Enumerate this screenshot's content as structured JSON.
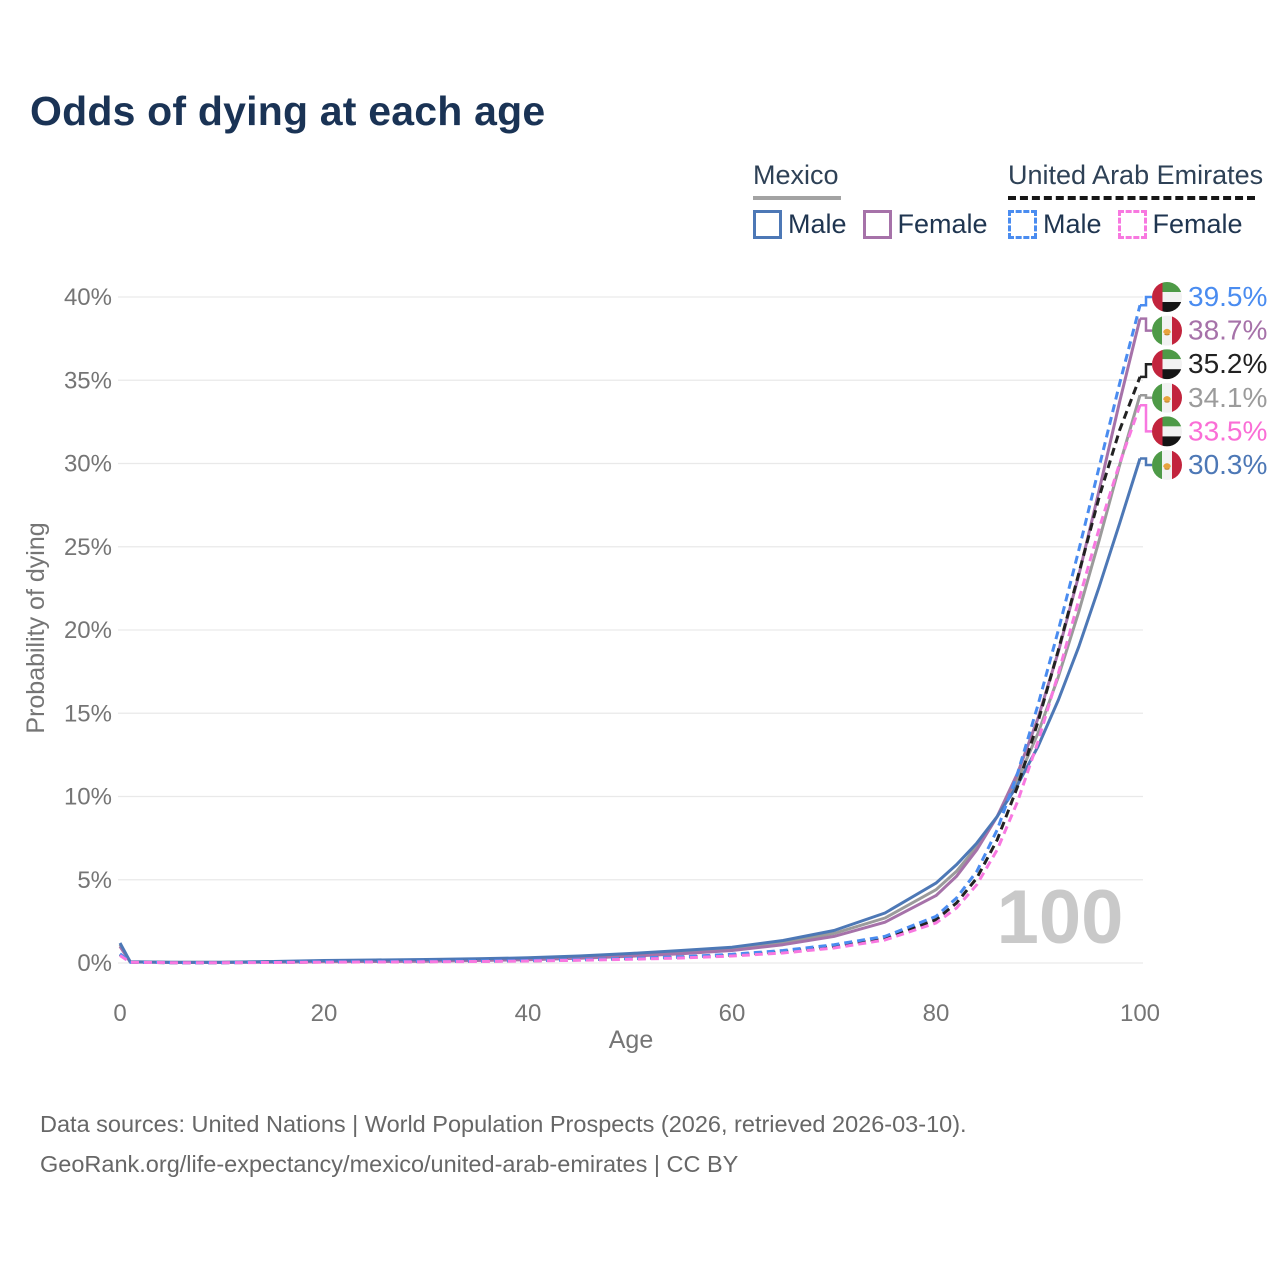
{
  "title": "Odds of dying at each age",
  "legend": {
    "groups": [
      {
        "country": "Mexico",
        "line_style": "solid",
        "underline_color": "#a3a3a3",
        "items": [
          {
            "label": "Male",
            "color": "#4d78b6",
            "dashed": false
          },
          {
            "label": "Female",
            "color": "#a672a9",
            "dashed": false
          }
        ]
      },
      {
        "country": "United Arab Emirates",
        "line_style": "dashed",
        "underline_color": "#161616",
        "items": [
          {
            "label": "Male",
            "color": "#4a8cf0",
            "dashed": true
          },
          {
            "label": "Female",
            "color": "#f878e0",
            "dashed": true
          }
        ]
      }
    ]
  },
  "axes": {
    "x": {
      "label": "Age",
      "ticks": [
        0,
        20,
        40,
        60,
        80,
        100
      ],
      "range": [
        0,
        100
      ]
    },
    "y": {
      "label": "Probability of dying",
      "ticks": [
        "0%",
        "5%",
        "10%",
        "15%",
        "20%",
        "25%",
        "30%",
        "35%",
        "40%"
      ],
      "range_pct": [
        0,
        40
      ],
      "grid": true
    }
  },
  "watermark": "100",
  "footer": {
    "line1": "Data sources: United Nations | World Population Prospects (2026, retrieved 2026-03-10).",
    "line2": "GeoRank.org/life-expectancy/mexico/united-arab-emirates | CC BY"
  },
  "chart_data": {
    "type": "line",
    "title": "Odds of dying at each age",
    "xlabel": "Age",
    "ylabel": "Probability of dying",
    "xlim": [
      0,
      100
    ],
    "ylim_pct": [
      0,
      40
    ],
    "grid": "horizontal",
    "legend_position": "top-right",
    "x": [
      0,
      1,
      5,
      10,
      15,
      20,
      25,
      30,
      35,
      40,
      45,
      50,
      55,
      60,
      65,
      70,
      75,
      80,
      82,
      84,
      86,
      88,
      90,
      92,
      94,
      96,
      98,
      100
    ],
    "series": [
      {
        "id": "mexico-both",
        "name": "Mexico Both sexes",
        "country": "MX",
        "dashed": false,
        "color": "#9b9b9b",
        "label_color": "#9b9b9b",
        "end_label": "34.1%",
        "values": [
          1.1,
          0.07,
          0.035,
          0.035,
          0.07,
          0.11,
          0.14,
          0.16,
          0.2,
          0.26,
          0.35,
          0.49,
          0.65,
          0.85,
          1.22,
          1.78,
          2.7,
          4.4,
          5.5,
          7.0,
          8.8,
          11.0,
          13.8,
          17.2,
          21.1,
          25.4,
          29.9,
          34.1
        ]
      },
      {
        "id": "mexico-female",
        "name": "Mexico Female",
        "country": "MX",
        "dashed": false,
        "color": "#a672a9",
        "label_color": "#a672a9",
        "end_label": "38.7%",
        "values": [
          1.0,
          0.06,
          0.03,
          0.03,
          0.05,
          0.07,
          0.09,
          0.11,
          0.15,
          0.2,
          0.28,
          0.4,
          0.55,
          0.75,
          1.1,
          1.6,
          2.45,
          4.05,
          5.2,
          6.8,
          8.8,
          11.4,
          14.7,
          18.7,
          23.3,
          28.4,
          33.7,
          38.7
        ]
      },
      {
        "id": "mexico-male",
        "name": "Mexico Male",
        "country": "MX",
        "dashed": false,
        "color": "#4d78b6",
        "label_color": "#4d78b6",
        "end_label": "30.3%",
        "values": [
          1.2,
          0.08,
          0.04,
          0.04,
          0.09,
          0.15,
          0.18,
          0.21,
          0.25,
          0.31,
          0.42,
          0.57,
          0.75,
          0.95,
          1.35,
          1.95,
          3.0,
          4.8,
          5.9,
          7.2,
          8.8,
          10.7,
          13.0,
          15.8,
          19.0,
          22.6,
          26.4,
          30.3
        ]
      },
      {
        "id": "uae-both",
        "name": "United Arab Emirates Both sexes",
        "country": "AE",
        "dashed": true,
        "color": "#222222",
        "label_color": "#222222",
        "end_label": "35.2%",
        "values": [
          0.5,
          0.045,
          0.019,
          0.019,
          0.035,
          0.06,
          0.075,
          0.085,
          0.105,
          0.135,
          0.18,
          0.25,
          0.34,
          0.47,
          0.68,
          1.0,
          1.5,
          2.6,
          3.6,
          5.1,
          7.4,
          10.6,
          14.5,
          18.8,
          23.4,
          28.0,
          32.0,
          35.2
        ]
      },
      {
        "id": "uae-male",
        "name": "United Arab Emirates Male",
        "country": "AE",
        "dashed": true,
        "color": "#4a8cf0",
        "label_color": "#4a8cf0",
        "end_label": "39.5%",
        "values": [
          0.55,
          0.05,
          0.02,
          0.02,
          0.04,
          0.07,
          0.09,
          0.1,
          0.12,
          0.15,
          0.2,
          0.28,
          0.38,
          0.52,
          0.75,
          1.1,
          1.6,
          2.8,
          3.9,
          5.5,
          8.0,
          11.4,
          15.5,
          20.0,
          24.8,
          29.8,
          34.8,
          39.5
        ]
      },
      {
        "id": "uae-female",
        "name": "United Arab Emirates Female",
        "country": "AE",
        "dashed": true,
        "color": "#f878e0",
        "label_color": "#fa6ed6",
        "end_label": "33.5%",
        "values": [
          0.45,
          0.04,
          0.018,
          0.018,
          0.03,
          0.05,
          0.06,
          0.07,
          0.09,
          0.12,
          0.16,
          0.22,
          0.3,
          0.42,
          0.6,
          0.9,
          1.38,
          2.4,
          3.3,
          4.7,
          6.8,
          9.7,
          13.3,
          17.4,
          21.8,
          26.1,
          30.0,
          33.5
        ]
      }
    ]
  }
}
